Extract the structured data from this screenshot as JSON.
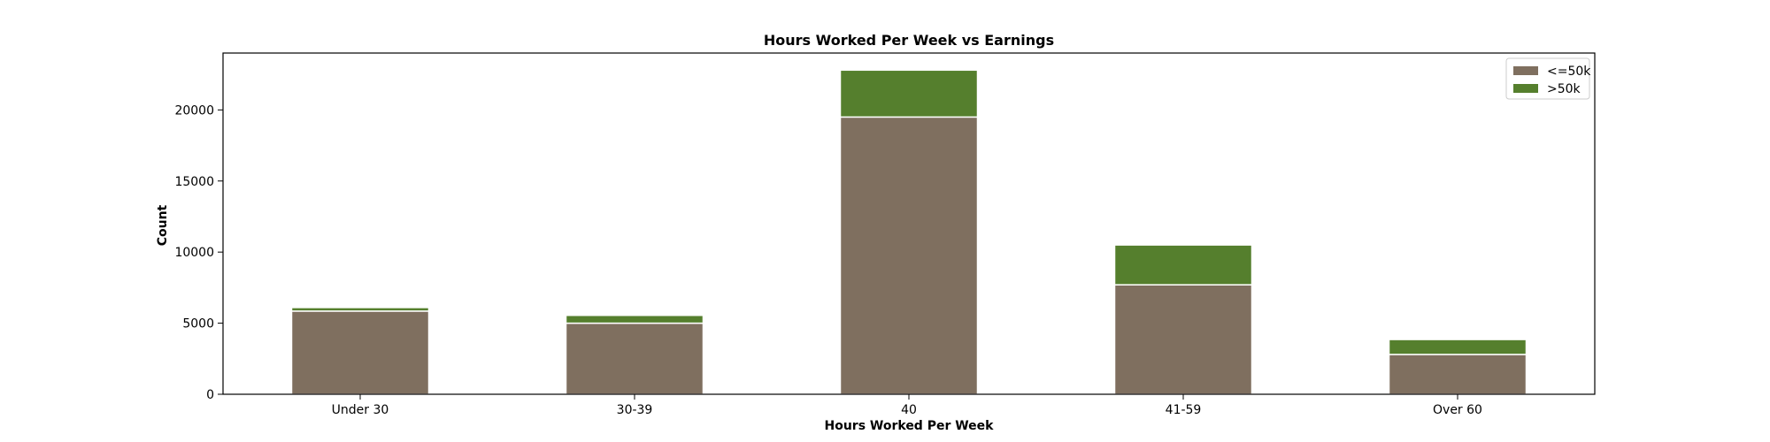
{
  "chart_data": {
    "type": "bar",
    "stacked": true,
    "title": "Hours Worked Per Week vs Earnings",
    "xlabel": "Hours Worked Per Week",
    "ylabel": "Count",
    "categories": [
      "Under 30",
      "30-39",
      "40",
      "41-59",
      "Over 60"
    ],
    "series": [
      {
        "name": "<=50k",
        "color": "#7f6f5f",
        "values": [
          5850,
          5000,
          19500,
          7700,
          2800
        ]
      },
      {
        "name": ">50k",
        "color": "#557f2d",
        "values": [
          250,
          550,
          3300,
          2800,
          1050
        ]
      }
    ],
    "ylim": [
      0,
      24000
    ],
    "yticks": [
      0,
      5000,
      10000,
      15000,
      20000
    ],
    "grid": false,
    "legend_position": "top-right"
  }
}
